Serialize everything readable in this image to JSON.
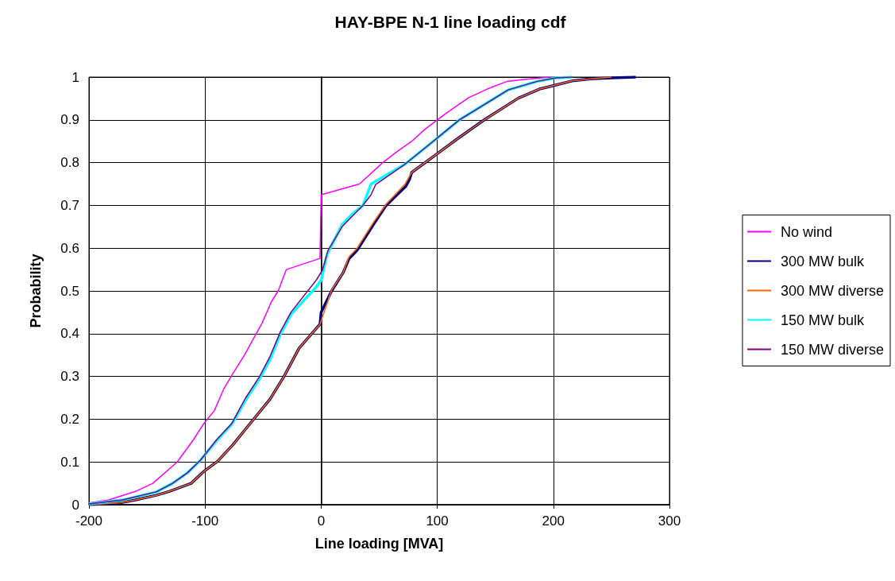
{
  "chart_data": {
    "type": "line",
    "title": "HAY-BPE N-1 line loading cdf",
    "xlabel": "Line loading [MVA]",
    "ylabel": "Probability",
    "xlim": [
      -200,
      300
    ],
    "xticks": [
      -200,
      -100,
      0,
      100,
      200,
      300
    ],
    "ylim": [
      0,
      1
    ],
    "yticks": [
      0,
      0.1,
      0.2,
      0.3,
      0.4,
      0.5,
      0.6,
      0.7,
      0.8,
      0.9,
      1
    ],
    "grid": true,
    "legend": "right",
    "marker": "none",
    "line_style": "solid",
    "series": [
      {
        "name": "No wind",
        "color": "#ff00ff",
        "x": [
          -200,
          -183,
          -160,
          -145,
          -124,
          -110,
          -101,
          -92,
          -84,
          -76,
          -66,
          -56,
          -51,
          -46,
          -43,
          -37,
          -30,
          -1,
          0,
          33,
          53,
          65,
          78,
          89,
          100,
          108,
          127,
          143,
          160,
          173,
          190,
          197
        ],
        "values": [
          0.004,
          0.011,
          0.031,
          0.05,
          0.1,
          0.152,
          0.19,
          0.22,
          0.27,
          0.307,
          0.35,
          0.4,
          0.424,
          0.455,
          0.474,
          0.5,
          0.55,
          0.576,
          0.725,
          0.75,
          0.8,
          0.825,
          0.85,
          0.877,
          0.9,
          0.916,
          0.952,
          0.972,
          0.99,
          0.994,
          0.998,
          1
        ]
      },
      {
        "name": "300 MW bulk",
        "color": "#000080",
        "x": [
          -200,
          -174,
          -160,
          -142,
          -131,
          -112,
          -101,
          -89,
          -76,
          -65,
          -44,
          -32,
          -19,
          -1,
          0,
          9,
          19,
          24,
          31,
          45,
          56,
          73,
          76,
          78,
          100,
          117,
          141,
          170,
          188,
          200,
          216,
          232,
          250,
          271
        ],
        "values": [
          0,
          0.004,
          0.011,
          0.022,
          0.031,
          0.05,
          0.078,
          0.102,
          0.14,
          0.177,
          0.247,
          0.3,
          0.366,
          0.422,
          0.45,
          0.5,
          0.543,
          0.575,
          0.595,
          0.655,
          0.7,
          0.745,
          0.76,
          0.777,
          0.821,
          0.855,
          0.901,
          0.951,
          0.972,
          0.98,
          0.991,
          0.996,
          0.998,
          1
        ]
      },
      {
        "name": "300 MW diverse",
        "color": "#ff6600",
        "x": [
          -200,
          -174,
          -160,
          -142,
          -131,
          -112,
          -101,
          -89,
          -76,
          -65,
          -44,
          -32,
          -19,
          -1,
          9,
          19,
          24,
          31,
          45,
          56,
          72,
          78,
          100,
          117,
          141,
          170,
          188,
          200,
          216,
          232,
          250
        ],
        "values": [
          0,
          0.004,
          0.011,
          0.022,
          0.031,
          0.05,
          0.078,
          0.102,
          0.14,
          0.177,
          0.247,
          0.3,
          0.366,
          0.422,
          0.502,
          0.543,
          0.58,
          0.6,
          0.66,
          0.703,
          0.749,
          0.777,
          0.821,
          0.855,
          0.901,
          0.951,
          0.972,
          0.98,
          0.991,
          0.996,
          1
        ]
      },
      {
        "name": "150 MW bulk",
        "color": "#00ffff",
        "x": [
          -200,
          -171,
          -142,
          -128,
          -115,
          -104,
          -90,
          -77,
          -65,
          -53,
          -44,
          -35,
          -26,
          -4,
          0,
          5,
          18,
          27,
          36,
          43,
          72,
          93,
          119,
          143,
          161,
          186,
          202,
          216
        ],
        "values": [
          0.002,
          0.011,
          0.03,
          0.05,
          0.075,
          0.104,
          0.15,
          0.188,
          0.245,
          0.295,
          0.34,
          0.4,
          0.445,
          0.51,
          0.525,
          0.585,
          0.655,
          0.68,
          0.7,
          0.75,
          0.796,
          0.842,
          0.9,
          0.94,
          0.97,
          0.99,
          0.998,
          1
        ]
      },
      {
        "name": "150 MW diverse",
        "color": "#800080",
        "x": [
          -200,
          -171,
          -142,
          -128,
          -115,
          -104,
          -90,
          -77,
          -65,
          -53,
          -44,
          -35,
          -26,
          -4,
          1,
          6,
          18,
          27,
          36,
          43,
          47,
          72,
          93,
          119,
          143,
          161,
          186,
          202,
          216
        ],
        "values": [
          0.002,
          0.011,
          0.03,
          0.05,
          0.075,
          0.104,
          0.152,
          0.19,
          0.25,
          0.3,
          0.347,
          0.405,
          0.45,
          0.526,
          0.548,
          0.595,
          0.65,
          0.675,
          0.7,
          0.725,
          0.749,
          0.796,
          0.842,
          0.9,
          0.94,
          0.97,
          0.99,
          0.998,
          1
        ]
      }
    ]
  }
}
